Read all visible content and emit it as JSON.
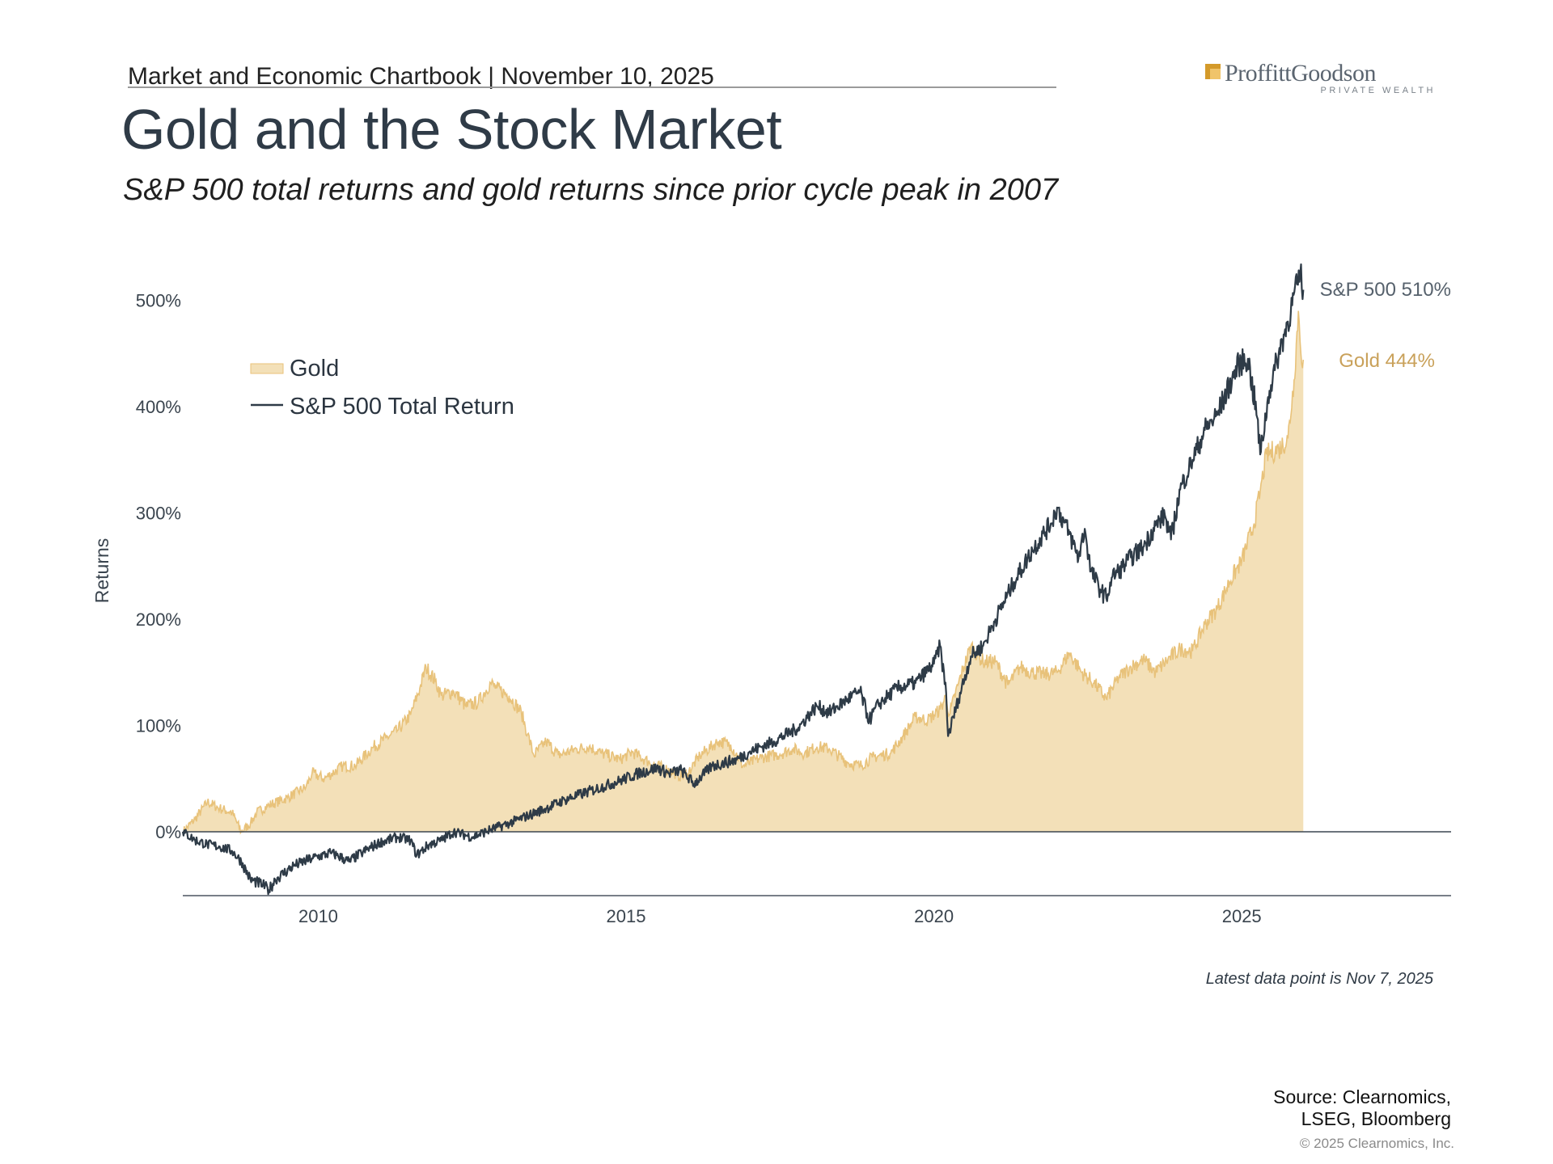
{
  "header": {
    "text": "Market and Economic Chartbook | November 10, 2025",
    "logo_main": "ProffittGoodson",
    "logo_sub": "PRIVATE WEALTH",
    "logo_color": "#d49a2a"
  },
  "title": "Gold and the Stock Market",
  "subtitle": "S&P 500 total returns and gold returns since prior cycle peak in 2007",
  "chart_data": {
    "type": "line",
    "ylabel": "Returns",
    "y_ticks": [
      "500%",
      "400%",
      "300%",
      "200%",
      "100%",
      "0%"
    ],
    "x_ticks": [
      "2010",
      "2015",
      "2020",
      "2025"
    ],
    "xlim": [
      2007.8,
      2028.4
    ],
    "ylim": [
      -60,
      520
    ],
    "legend_placement": "top-left",
    "grid": false,
    "series": [
      {
        "name": "Gold",
        "style": "area",
        "color": "#e8c27a",
        "fill": "#f3e0b8",
        "end_label": "Gold 444%",
        "points": [
          [
            2007.8,
            0
          ],
          [
            2008.0,
            12
          ],
          [
            2008.2,
            28
          ],
          [
            2008.4,
            22
          ],
          [
            2008.6,
            18
          ],
          [
            2008.75,
            0
          ],
          [
            2008.9,
            8
          ],
          [
            2009.0,
            18
          ],
          [
            2009.2,
            25
          ],
          [
            2009.5,
            32
          ],
          [
            2009.8,
            42
          ],
          [
            2009.9,
            55
          ],
          [
            2010.1,
            50
          ],
          [
            2010.4,
            62
          ],
          [
            2010.6,
            62
          ],
          [
            2010.9,
            80
          ],
          [
            2011.1,
            88
          ],
          [
            2011.3,
            96
          ],
          [
            2011.5,
            110
          ],
          [
            2011.65,
            135
          ],
          [
            2011.75,
            155
          ],
          [
            2011.9,
            142
          ],
          [
            2012.0,
            128
          ],
          [
            2012.2,
            132
          ],
          [
            2012.4,
            118
          ],
          [
            2012.6,
            122
          ],
          [
            2012.8,
            140
          ],
          [
            2012.9,
            135
          ],
          [
            2013.1,
            128
          ],
          [
            2013.3,
            112
          ],
          [
            2013.4,
            92
          ],
          [
            2013.5,
            72
          ],
          [
            2013.7,
            85
          ],
          [
            2013.9,
            72
          ],
          [
            2014.2,
            78
          ],
          [
            2014.4,
            80
          ],
          [
            2014.6,
            74
          ],
          [
            2014.9,
            68
          ],
          [
            2015.1,
            75
          ],
          [
            2015.3,
            68
          ],
          [
            2015.5,
            62
          ],
          [
            2015.7,
            58
          ],
          [
            2015.9,
            52
          ],
          [
            2016.0,
            55
          ],
          [
            2016.2,
            72
          ],
          [
            2016.5,
            85
          ],
          [
            2016.7,
            82
          ],
          [
            2016.9,
            62
          ],
          [
            2017.2,
            70
          ],
          [
            2017.5,
            73
          ],
          [
            2017.7,
            78
          ],
          [
            2017.9,
            74
          ],
          [
            2018.1,
            80
          ],
          [
            2018.3,
            78
          ],
          [
            2018.6,
            65
          ],
          [
            2018.8,
            62
          ],
          [
            2019.0,
            70
          ],
          [
            2019.3,
            74
          ],
          [
            2019.5,
            90
          ],
          [
            2019.7,
            108
          ],
          [
            2019.9,
            105
          ],
          [
            2020.1,
            115
          ],
          [
            2020.2,
            128
          ],
          [
            2020.25,
            110
          ],
          [
            2020.4,
            140
          ],
          [
            2020.6,
            175
          ],
          [
            2020.8,
            160
          ],
          [
            2021.0,
            160
          ],
          [
            2021.2,
            138
          ],
          [
            2021.4,
            155
          ],
          [
            2021.6,
            150
          ],
          [
            2021.8,
            148
          ],
          [
            2022.0,
            150
          ],
          [
            2022.2,
            168
          ],
          [
            2022.4,
            150
          ],
          [
            2022.6,
            140
          ],
          [
            2022.8,
            125
          ],
          [
            2023.0,
            145
          ],
          [
            2023.2,
            155
          ],
          [
            2023.4,
            162
          ],
          [
            2023.6,
            150
          ],
          [
            2023.8,
            162
          ],
          [
            2024.0,
            172
          ],
          [
            2024.2,
            170
          ],
          [
            2024.4,
            195
          ],
          [
            2024.6,
            210
          ],
          [
            2024.8,
            235
          ],
          [
            2025.0,
            255
          ],
          [
            2025.2,
            290
          ],
          [
            2025.3,
            320
          ],
          [
            2025.4,
            355
          ],
          [
            2025.6,
            360
          ],
          [
            2025.75,
            370
          ],
          [
            2025.85,
            425
          ],
          [
            2025.92,
            490
          ],
          [
            2025.96,
            450
          ],
          [
            2026.0,
            444
          ]
        ]
      },
      {
        "name": "S&P 500 Total Return",
        "style": "line",
        "color": "#2e3b47",
        "end_label": "S&P 500 510%",
        "points": [
          [
            2007.8,
            0
          ],
          [
            2008.0,
            -8
          ],
          [
            2008.2,
            -12
          ],
          [
            2008.4,
            -14
          ],
          [
            2008.6,
            -18
          ],
          [
            2008.75,
            -28
          ],
          [
            2008.9,
            -45
          ],
          [
            2009.1,
            -50
          ],
          [
            2009.2,
            -55
          ],
          [
            2009.3,
            -45
          ],
          [
            2009.6,
            -32
          ],
          [
            2009.9,
            -25
          ],
          [
            2010.2,
            -20
          ],
          [
            2010.3,
            -22
          ],
          [
            2010.5,
            -28
          ],
          [
            2010.7,
            -20
          ],
          [
            2011.0,
            -10
          ],
          [
            2011.3,
            -5
          ],
          [
            2011.5,
            -8
          ],
          [
            2011.6,
            -22
          ],
          [
            2011.8,
            -12
          ],
          [
            2012.0,
            -8
          ],
          [
            2012.2,
            0
          ],
          [
            2012.5,
            -5
          ],
          [
            2012.8,
            2
          ],
          [
            2013.1,
            8
          ],
          [
            2013.4,
            15
          ],
          [
            2013.7,
            22
          ],
          [
            2014.0,
            30
          ],
          [
            2014.3,
            36
          ],
          [
            2014.6,
            42
          ],
          [
            2014.9,
            48
          ],
          [
            2015.2,
            55
          ],
          [
            2015.5,
            60
          ],
          [
            2015.7,
            55
          ],
          [
            2015.9,
            58
          ],
          [
            2016.1,
            45
          ],
          [
            2016.4,
            62
          ],
          [
            2016.8,
            68
          ],
          [
            2017.0,
            75
          ],
          [
            2017.4,
            85
          ],
          [
            2017.8,
            98
          ],
          [
            2018.0,
            112
          ],
          [
            2018.1,
            118
          ],
          [
            2018.3,
            112
          ],
          [
            2018.6,
            125
          ],
          [
            2018.8,
            132
          ],
          [
            2018.95,
            105
          ],
          [
            2019.1,
            120
          ],
          [
            2019.4,
            135
          ],
          [
            2019.7,
            140
          ],
          [
            2020.0,
            158
          ],
          [
            2020.1,
            175
          ],
          [
            2020.2,
            130
          ],
          [
            2020.23,
            90
          ],
          [
            2020.4,
            125
          ],
          [
            2020.6,
            165
          ],
          [
            2020.8,
            175
          ],
          [
            2021.0,
            200
          ],
          [
            2021.3,
            235
          ],
          [
            2021.6,
            265
          ],
          [
            2021.9,
            290
          ],
          [
            2022.0,
            305
          ],
          [
            2022.2,
            280
          ],
          [
            2022.35,
            258
          ],
          [
            2022.45,
            285
          ],
          [
            2022.55,
            245
          ],
          [
            2022.7,
            228
          ],
          [
            2022.8,
            220
          ],
          [
            2022.9,
            240
          ],
          [
            2023.0,
            245
          ],
          [
            2023.2,
            258
          ],
          [
            2023.4,
            268
          ],
          [
            2023.6,
            288
          ],
          [
            2023.75,
            298
          ],
          [
            2023.85,
            275
          ],
          [
            2024.0,
            322
          ],
          [
            2024.2,
            350
          ],
          [
            2024.4,
            378
          ],
          [
            2024.6,
            392
          ],
          [
            2024.8,
            420
          ],
          [
            2024.95,
            440
          ],
          [
            2025.1,
            445
          ],
          [
            2025.25,
            390
          ],
          [
            2025.3,
            355
          ],
          [
            2025.45,
            415
          ],
          [
            2025.6,
            450
          ],
          [
            2025.75,
            480
          ],
          [
            2025.9,
            515
          ],
          [
            2025.95,
            525
          ],
          [
            2026.0,
            510
          ]
        ]
      }
    ]
  },
  "note": "Latest data point is Nov 7, 2025",
  "source_line1": "Source: Clearnomics,",
  "source_line2": "LSEG, Bloomberg",
  "copyright": "© 2025 Clearnomics, Inc."
}
